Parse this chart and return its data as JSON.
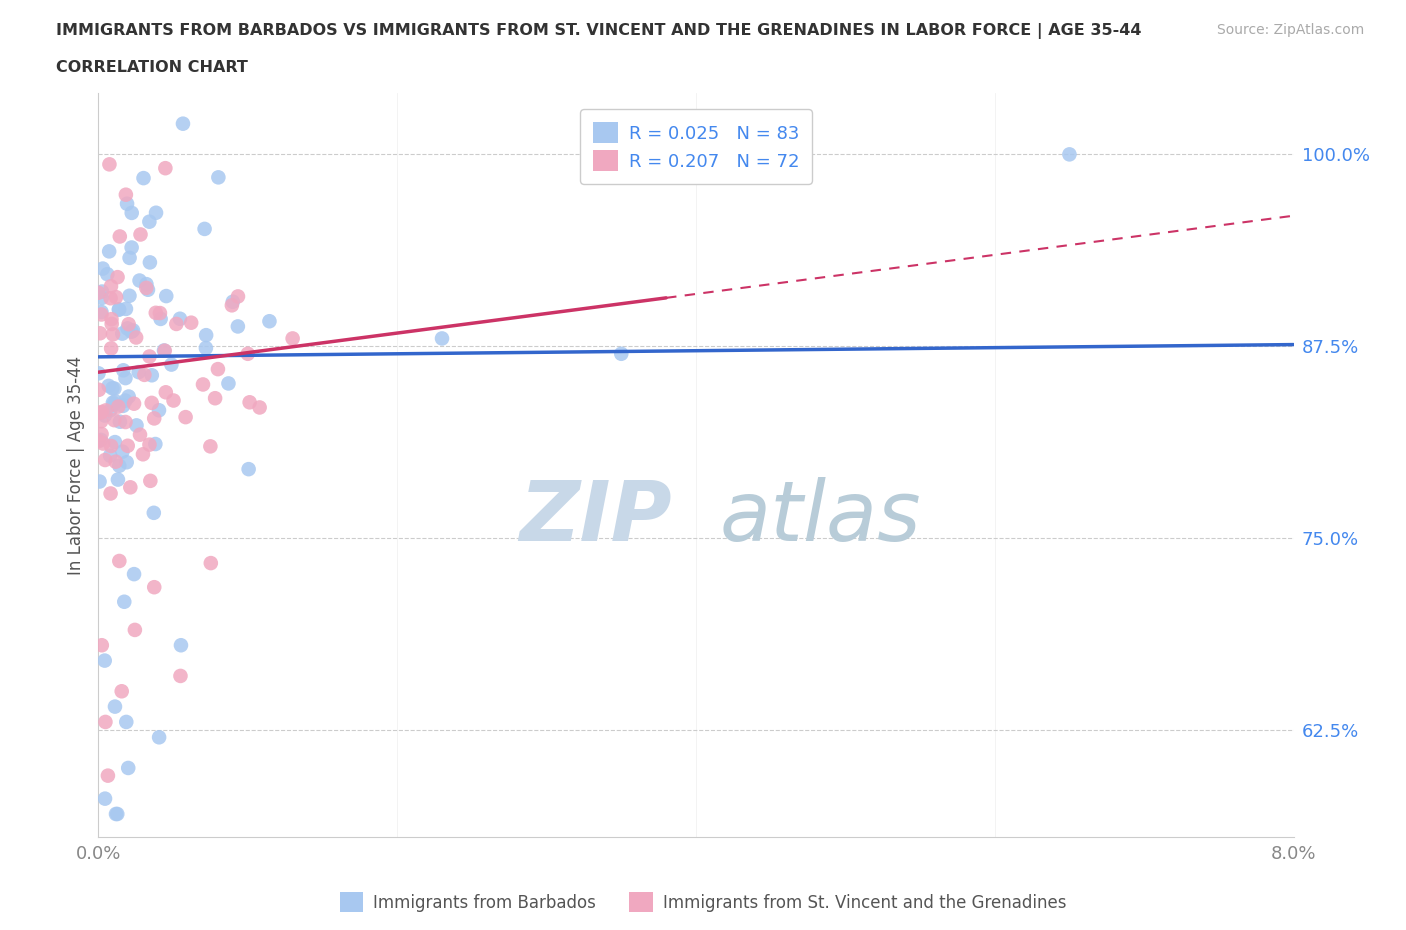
{
  "title_line1": "IMMIGRANTS FROM BARBADOS VS IMMIGRANTS FROM ST. VINCENT AND THE GRENADINES IN LABOR FORCE | AGE 35-44",
  "title_line2": "CORRELATION CHART",
  "source": "Source: ZipAtlas.com",
  "ylabel": "In Labor Force | Age 35-44",
  "xlim": [
    0.0,
    0.08
  ],
  "ylim": [
    0.555,
    1.04
  ],
  "ytick_vals": [
    0.625,
    0.75,
    0.875,
    1.0
  ],
  "ytick_labels": [
    "62.5%",
    "75.0%",
    "87.5%",
    "100.0%"
  ],
  "xtick_vals": [
    0.0,
    0.02,
    0.04,
    0.06,
    0.08
  ],
  "xtick_labels": [
    "0.0%",
    "",
    "",
    "",
    "8.0%"
  ],
  "color_barbados": "#a8c8f0",
  "color_stvincent": "#f0a8c0",
  "color_line_barbados": "#3366cc",
  "color_line_stvincent": "#cc3366",
  "color_tick_y": "#4488ee",
  "color_tick_x": "#888888",
  "color_grid": "#cccccc",
  "legend_r1": "R = 0.025",
  "legend_n1": "N = 83",
  "legend_r2": "R = 0.207",
  "legend_n2": "N = 72",
  "watermark_zip_color": "#c8d8e8",
  "watermark_atlas_color": "#b8ccd8",
  "bottom_label1": "Immigrants from Barbados",
  "bottom_label2": "Immigrants from St. Vincent and the Grenadines",
  "line_barbados_y0": 0.868,
  "line_barbados_y1": 0.876,
  "line_stvincent_y0": 0.858,
  "line_stvincent_y1": 0.96,
  "line_stvincent_solid_x1": 0.038,
  "scatter_size": 110
}
